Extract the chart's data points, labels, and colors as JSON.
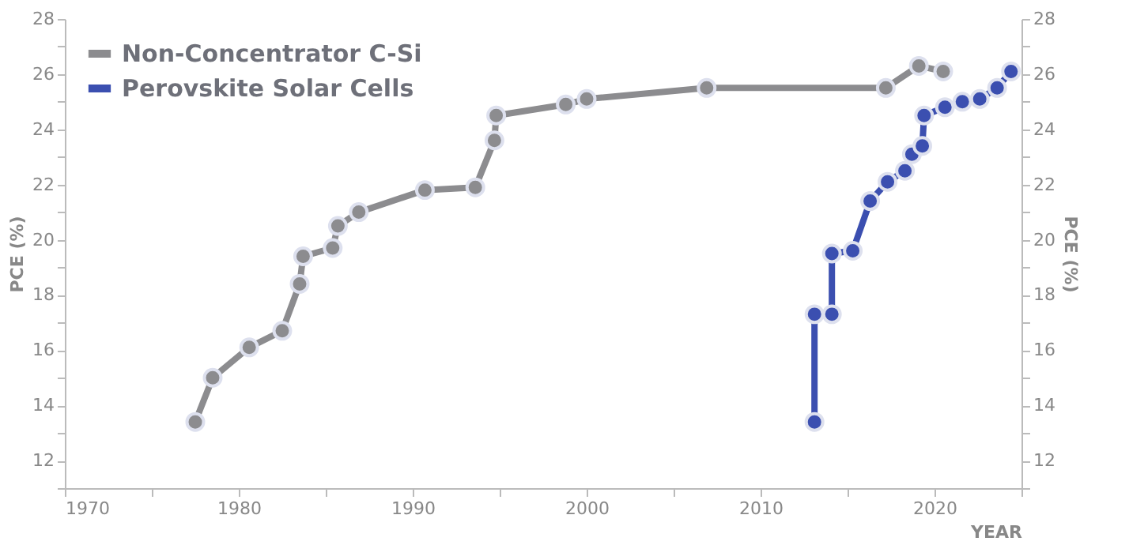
{
  "chart_data": {
    "type": "line",
    "xlabel": "YEAR",
    "ylabel": "PCE (%)",
    "y2label": "PCE (%)",
    "marker": "circle",
    "line_style": "solid",
    "legend": "top left",
    "grid": false,
    "xlim": [
      1970,
      2025
    ],
    "xticks": [
      1970,
      {
        "value": 1975,
        "label": null
      },
      1980,
      {
        "value": 1985,
        "label": null
      },
      1990,
      {
        "value": 1995,
        "label": null
      },
      2000,
      {
        "value": 2005,
        "label": null
      },
      2010,
      {
        "value": 2015,
        "label": null
      },
      2020,
      {
        "value": 2025,
        "label": null
      }
    ],
    "ylim": [
      11,
      28
    ],
    "yticks": [
      {
        "value": 11,
        "label": null
      },
      12,
      {
        "value": 13,
        "label": null
      },
      14,
      {
        "value": 15,
        "label": null
      },
      16,
      {
        "value": 17,
        "label": null
      },
      18,
      {
        "value": 19,
        "label": null
      },
      20,
      {
        "value": 21,
        "label": null
      },
      22,
      {
        "value": 23,
        "label": null
      },
      24,
      {
        "value": 25,
        "label": null
      },
      26,
      {
        "value": 27,
        "label": null
      },
      28
    ],
    "y2lim": [
      11,
      28
    ],
    "y2ticks": [
      {
        "value": 11,
        "label": null
      },
      12,
      {
        "value": 13,
        "label": null
      },
      14,
      {
        "value": 15,
        "label": null
      },
      16,
      {
        "value": 17,
        "label": null
      },
      18,
      {
        "value": 19,
        "label": null
      },
      20,
      {
        "value": 21,
        "label": null
      },
      22,
      {
        "value": 23,
        "label": null
      },
      24,
      {
        "value": 25,
        "label": null
      },
      26,
      {
        "value": 27,
        "label": null
      },
      28
    ],
    "series": [
      {
        "name": "Non-Concentrator C-Si",
        "color": "#8c8c8f",
        "x": [
          1977.5,
          1978.5,
          1980.6,
          1982.5,
          1983.5,
          1983.7,
          1985.4,
          1985.7,
          1986.9,
          1990.7,
          1993.6,
          1994.7,
          1994.8,
          1998.8,
          2000.0,
          2006.9,
          2017.2,
          2019.1,
          2020.5
        ],
        "values": [
          13.4,
          15.0,
          16.1,
          16.7,
          18.4,
          19.4,
          19.7,
          20.5,
          21.0,
          21.8,
          21.9,
          23.6,
          24.5,
          24.9,
          25.1,
          25.5,
          25.5,
          26.3,
          26.1
        ]
      },
      {
        "name": "Perovskite Solar Cells",
        "color": "#3b4fb0",
        "x": [
          2013.1,
          2013.1,
          2014.1,
          2014.1,
          2015.3,
          2016.3,
          2017.3,
          2018.3,
          2018.7,
          2019.3,
          2019.4,
          2020.6,
          2021.6,
          2022.6,
          2023.6,
          2024.4
        ],
        "values": [
          13.4,
          17.3,
          17.3,
          19.5,
          19.6,
          21.4,
          22.1,
          22.5,
          23.1,
          23.4,
          24.5,
          24.8,
          25.0,
          25.1,
          25.5,
          26.1
        ]
      }
    ]
  }
}
